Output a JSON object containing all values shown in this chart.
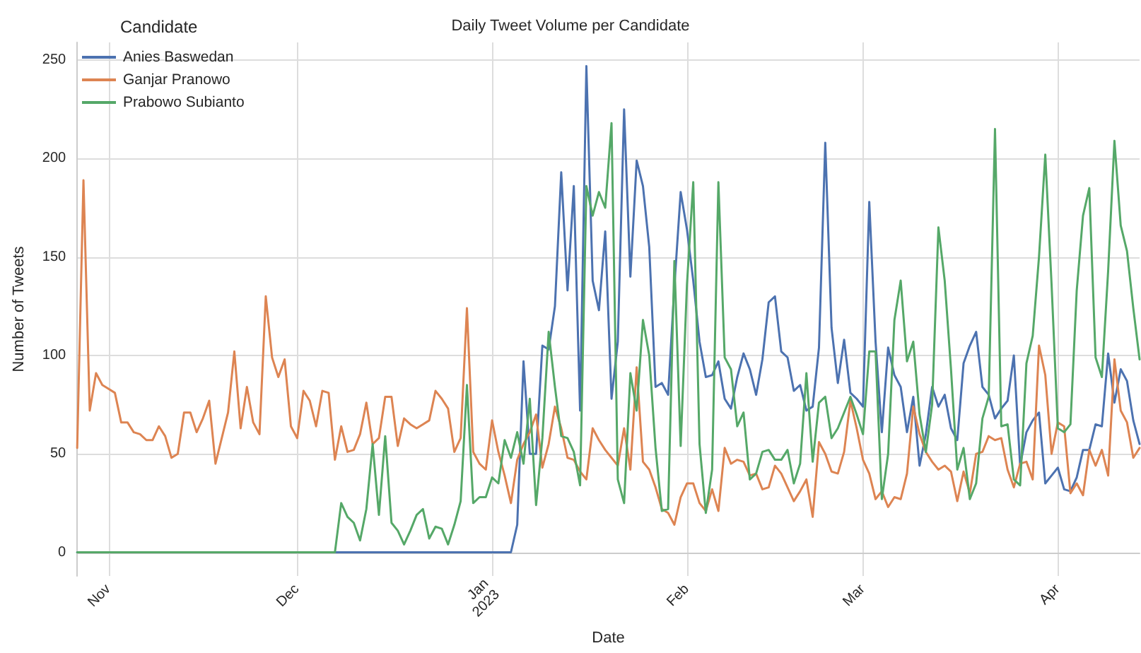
{
  "chart_data": {
    "type": "line",
    "title": "Daily Tweet Volume per Candidate",
    "xlabel": "Date",
    "ylabel": "Number of Tweets",
    "legend_title": "Candidate",
    "legend": "top left",
    "grid": true,
    "marker": "none",
    "line_style": "solid",
    "xlim": [
      "2022-10-27",
      "2023-04-14"
    ],
    "ylim": [
      -12,
      259
    ],
    "xticks": [
      {
        "value": "2022-11-01",
        "label": "Nov"
      },
      {
        "value": "2022-12-01",
        "label": "Dec"
      },
      {
        "value": "2023-01-01",
        "label": "Jan\n2023"
      },
      {
        "value": "2023-02-01",
        "label": "Feb"
      },
      {
        "value": "2023-03-01",
        "label": "Mar"
      },
      {
        "value": "2023-04-01",
        "label": "Apr"
      }
    ],
    "yticks": [
      0,
      50,
      100,
      150,
      200,
      250
    ],
    "x": [
      "2022-10-27",
      "2022-10-28",
      "2022-10-29",
      "2022-10-30",
      "2022-10-31",
      "2022-11-01",
      "2022-11-02",
      "2022-11-03",
      "2022-11-04",
      "2022-11-05",
      "2022-11-06",
      "2022-11-07",
      "2022-11-08",
      "2022-11-09",
      "2022-11-10",
      "2022-11-11",
      "2022-11-12",
      "2022-11-13",
      "2022-11-14",
      "2022-11-15",
      "2022-11-16",
      "2022-11-17",
      "2022-11-18",
      "2022-11-19",
      "2022-11-20",
      "2022-11-21",
      "2022-11-22",
      "2022-11-23",
      "2022-11-24",
      "2022-11-25",
      "2022-11-26",
      "2022-11-27",
      "2022-11-28",
      "2022-11-29",
      "2022-11-30",
      "2022-12-01",
      "2022-12-02",
      "2022-12-03",
      "2022-12-04",
      "2022-12-05",
      "2022-12-06",
      "2022-12-07",
      "2022-12-08",
      "2022-12-09",
      "2022-12-10",
      "2022-12-11",
      "2022-12-12",
      "2022-12-13",
      "2022-12-14",
      "2022-12-15",
      "2022-12-16",
      "2022-12-17",
      "2022-12-18",
      "2022-12-19",
      "2022-12-20",
      "2022-12-21",
      "2022-12-22",
      "2022-12-23",
      "2022-12-24",
      "2022-12-25",
      "2022-12-26",
      "2022-12-27",
      "2022-12-28",
      "2022-12-29",
      "2022-12-30",
      "2022-12-31",
      "2023-01-01",
      "2023-01-02",
      "2023-01-03",
      "2023-01-04",
      "2023-01-05",
      "2023-01-06",
      "2023-01-07",
      "2023-01-08",
      "2023-01-09",
      "2023-01-10",
      "2023-01-11",
      "2023-01-12",
      "2023-01-13",
      "2023-01-14",
      "2023-01-15",
      "2023-01-16",
      "2023-01-17",
      "2023-01-18",
      "2023-01-19",
      "2023-01-20",
      "2023-01-21",
      "2023-01-22",
      "2023-01-23",
      "2023-01-24",
      "2023-01-25",
      "2023-01-26",
      "2023-01-27",
      "2023-01-28",
      "2023-01-29",
      "2023-01-30",
      "2023-01-31",
      "2023-02-01",
      "2023-02-02",
      "2023-02-03",
      "2023-02-04",
      "2023-02-05",
      "2023-02-06",
      "2023-02-07",
      "2023-02-08",
      "2023-02-09",
      "2023-02-10",
      "2023-02-11",
      "2023-02-12",
      "2023-02-13",
      "2023-02-14",
      "2023-02-15",
      "2023-02-16",
      "2023-02-17",
      "2023-02-18",
      "2023-02-19",
      "2023-02-20",
      "2023-02-21",
      "2023-02-22",
      "2023-02-23",
      "2023-02-24",
      "2023-02-25",
      "2023-02-26",
      "2023-02-27",
      "2023-02-28",
      "2023-03-01",
      "2023-03-02",
      "2023-03-03",
      "2023-03-04",
      "2023-03-05",
      "2023-03-06",
      "2023-03-07",
      "2023-03-08",
      "2023-03-09",
      "2023-03-10",
      "2023-03-11",
      "2023-03-12",
      "2023-03-13",
      "2023-03-14",
      "2023-03-15",
      "2023-03-16",
      "2023-03-17",
      "2023-03-18",
      "2023-03-19",
      "2023-03-20",
      "2023-03-21",
      "2023-03-22",
      "2023-03-23",
      "2023-03-24",
      "2023-03-25",
      "2023-03-26",
      "2023-03-27",
      "2023-03-28",
      "2023-03-29",
      "2023-03-30",
      "2023-03-31",
      "2023-04-01",
      "2023-04-02",
      "2023-04-03",
      "2023-04-04",
      "2023-04-05",
      "2023-04-06",
      "2023-04-07",
      "2023-04-08",
      "2023-04-09",
      "2023-04-10",
      "2023-04-11",
      "2023-04-12",
      "2023-04-13",
      "2023-04-14"
    ],
    "series": [
      {
        "name": "Anies Baswedan",
        "color": "#4c72b0",
        "values": [
          0,
          0,
          0,
          0,
          0,
          0,
          0,
          0,
          0,
          0,
          0,
          0,
          0,
          0,
          0,
          0,
          0,
          0,
          0,
          0,
          0,
          0,
          0,
          0,
          0,
          0,
          0,
          0,
          0,
          0,
          0,
          0,
          0,
          0,
          0,
          0,
          0,
          0,
          0,
          0,
          0,
          0,
          0,
          0,
          0,
          0,
          0,
          0,
          0,
          0,
          0,
          0,
          0,
          0,
          0,
          0,
          0,
          0,
          0,
          0,
          0,
          0,
          0,
          0,
          0,
          0,
          0,
          0,
          0,
          0,
          14,
          97,
          50,
          50,
          105,
          103,
          125,
          193,
          133,
          186,
          72,
          247,
          138,
          123,
          163,
          78,
          107,
          225,
          140,
          199,
          186,
          155,
          84,
          86,
          80,
          135,
          183,
          164,
          138,
          107,
          89,
          90,
          97,
          78,
          73,
          89,
          101,
          93,
          80,
          98,
          127,
          130,
          102,
          99,
          82,
          85,
          72,
          74,
          104,
          208,
          114,
          86,
          108,
          81,
          78,
          74,
          178,
          107,
          61,
          104,
          90,
          84,
          61,
          79,
          44,
          60,
          84,
          74,
          80,
          63,
          57,
          96,
          105,
          112,
          84,
          80,
          68,
          73,
          77,
          100,
          44,
          61,
          67,
          71,
          35,
          39,
          43,
          32,
          31,
          38,
          52,
          52,
          65,
          64,
          101,
          76,
          93,
          87,
          67,
          55
        ]
      },
      {
        "name": "Ganjar Pranowo",
        "color": "#dd8452",
        "values": [
          53,
          189,
          72,
          91,
          85,
          83,
          81,
          66,
          66,
          61,
          60,
          57,
          57,
          64,
          59,
          48,
          50,
          71,
          71,
          61,
          68,
          77,
          45,
          58,
          71,
          102,
          63,
          84,
          66,
          60,
          130,
          99,
          89,
          98,
          64,
          58,
          82,
          77,
          64,
          82,
          81,
          47,
          64,
          51,
          52,
          60,
          76,
          55,
          58,
          79,
          79,
          54,
          68,
          65,
          63,
          65,
          67,
          82,
          78,
          73,
          51,
          58,
          124,
          51,
          45,
          42,
          67,
          51,
          39,
          25,
          47,
          55,
          61,
          70,
          43,
          55,
          74,
          63,
          48,
          47,
          41,
          37,
          63,
          57,
          52,
          48,
          44,
          63,
          42,
          94,
          46,
          42,
          33,
          22,
          20,
          14,
          28,
          35,
          35,
          25,
          21,
          32,
          21,
          53,
          45,
          47,
          46,
          39,
          40,
          32,
          33,
          44,
          40,
          33,
          26,
          31,
          37,
          18,
          56,
          50,
          41,
          40,
          51,
          77,
          63,
          47,
          40,
          27,
          31,
          23,
          28,
          27,
          40,
          74,
          60,
          51,
          46,
          42,
          44,
          41,
          26,
          41,
          30,
          50,
          51,
          59,
          57,
          58,
          42,
          33,
          45,
          46,
          37,
          105,
          90,
          50,
          66,
          64,
          30,
          35,
          29,
          52,
          44,
          52,
          39,
          98,
          72,
          66,
          48,
          53
        ]
      },
      {
        "name": "Prabowo Subianto",
        "color": "#55a868",
        "values": [
          0,
          0,
          0,
          0,
          0,
          0,
          0,
          0,
          0,
          0,
          0,
          0,
          0,
          0,
          0,
          0,
          0,
          0,
          0,
          0,
          0,
          0,
          0,
          0,
          0,
          0,
          0,
          0,
          0,
          0,
          0,
          0,
          0,
          0,
          0,
          0,
          0,
          0,
          0,
          0,
          0,
          0,
          25,
          18,
          15,
          6,
          22,
          55,
          19,
          59,
          15,
          11,
          4,
          11,
          19,
          22,
          7,
          13,
          12,
          4,
          14,
          26,
          85,
          25,
          28,
          28,
          38,
          35,
          57,
          48,
          61,
          45,
          78,
          24,
          58,
          112,
          84,
          59,
          58,
          51,
          34,
          186,
          171,
          183,
          175,
          218,
          37,
          25,
          91,
          72,
          118,
          100,
          53,
          21,
          22,
          148,
          54,
          136,
          188,
          55,
          20,
          42,
          188,
          99,
          93,
          64,
          71,
          37,
          40,
          51,
          52,
          47,
          47,
          52,
          35,
          45,
          91,
          46,
          76,
          79,
          58,
          63,
          71,
          79,
          70,
          60,
          102,
          102,
          27,
          50,
          118,
          138,
          97,
          107,
          70,
          51,
          75,
          165,
          138,
          93,
          42,
          53,
          27,
          35,
          68,
          79,
          215,
          64,
          65,
          37,
          34,
          96,
          110,
          150,
          202,
          136,
          63,
          61,
          65,
          133,
          171,
          185,
          99,
          89,
          143,
          209,
          166,
          153,
          124,
          98
        ]
      }
    ]
  }
}
